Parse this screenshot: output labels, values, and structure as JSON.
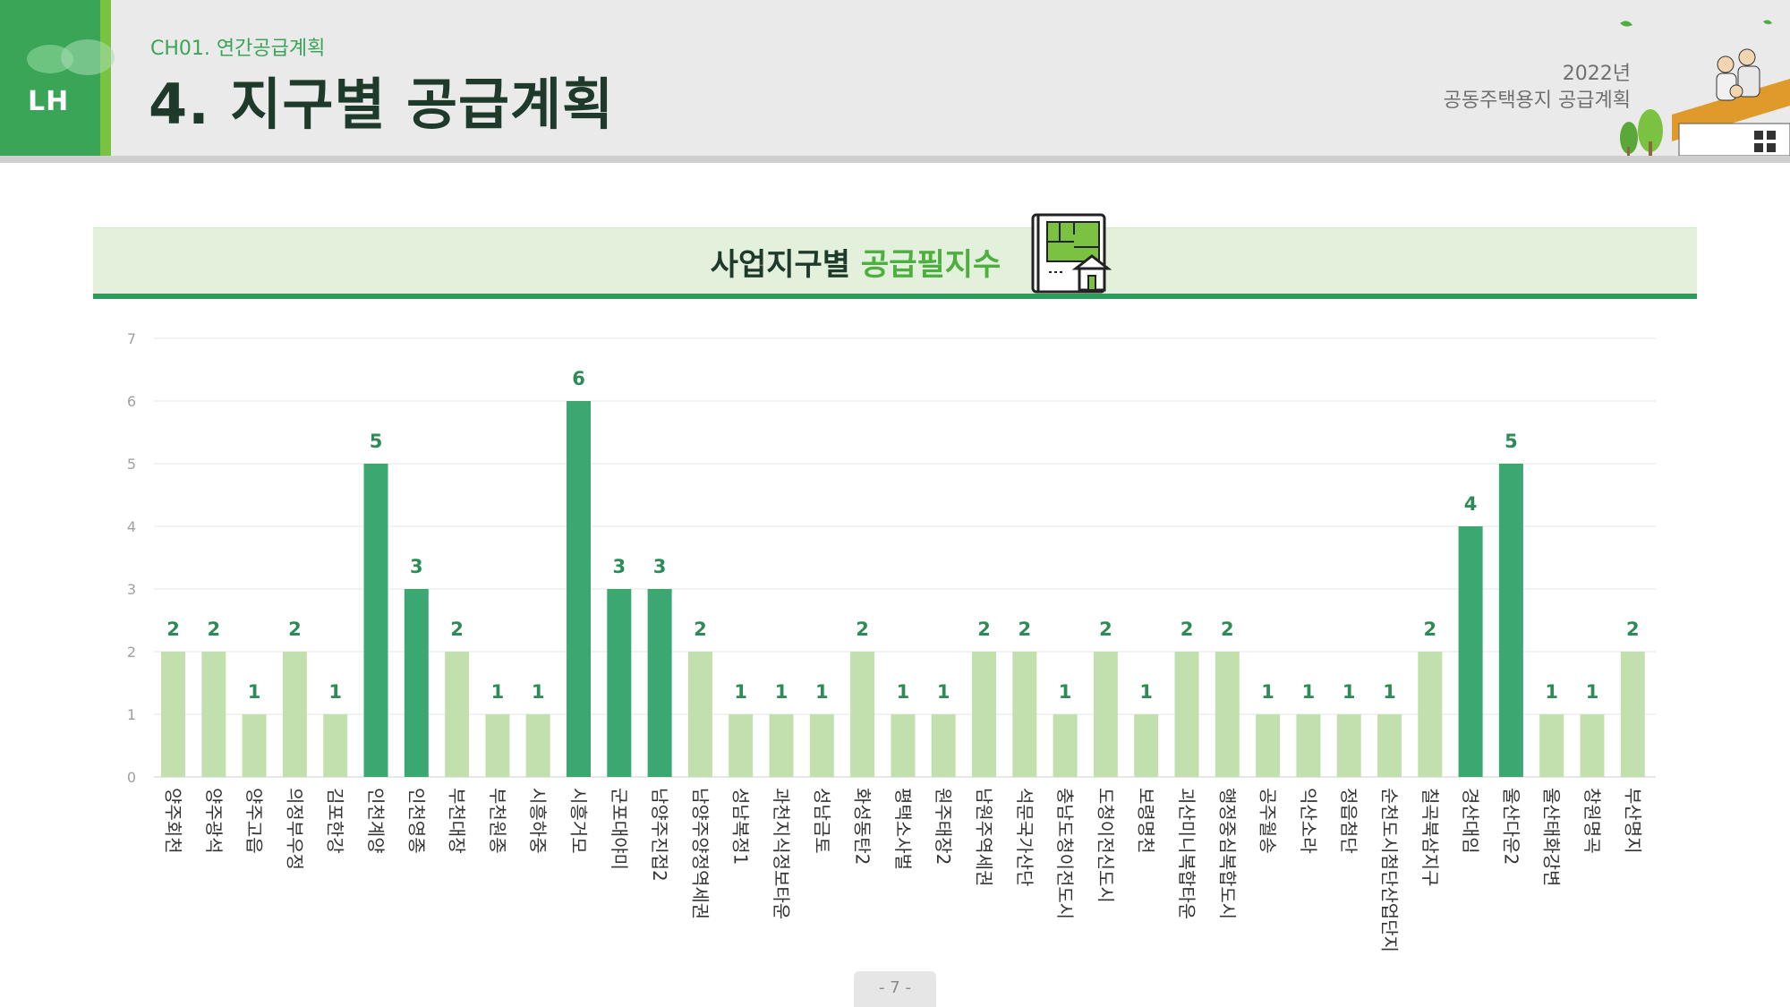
{
  "header": {
    "logo_text": "LH",
    "chapter": "CH01. 연간공급계획",
    "title": "4. 지구별 공급계획",
    "year": "2022년",
    "plan_name": "공동주택용지 공급계획"
  },
  "section": {
    "title_part1": "사업지구별",
    "title_part2": "공급필지수"
  },
  "footer": {
    "page": "- 7 -"
  },
  "colors": {
    "bar_dark": "#3aa870",
    "bar_light": "#c2e0ad",
    "label": "#2e8b57"
  },
  "chart_data": {
    "type": "bar",
    "title": "",
    "xlabel": "",
    "ylabel": "",
    "ylim": [
      0,
      7
    ],
    "yticks": [
      0,
      1,
      2,
      3,
      4,
      5,
      6,
      7
    ],
    "grid": true,
    "categories": [
      "양주회천",
      "양주광석",
      "양주고읍",
      "의정부우정",
      "김포한강",
      "인천계양",
      "인천영종",
      "부천대장",
      "부천원종",
      "시흥하중",
      "시흥거모",
      "군포대야미",
      "남양주진접2",
      "남양주양정역세권",
      "성남복정1",
      "과천지식정보타운",
      "성남금토",
      "화성동탄2",
      "평택소사벌",
      "원주태장2",
      "남원주역세권",
      "석문국가산단",
      "충남도청이전도시",
      "도청이전신도시",
      "보령명천",
      "괴산미니복합타운",
      "행정중심복합도시",
      "공주월송",
      "익산소라",
      "정읍첨단",
      "순천도시첨단산업단지",
      "칠곡북삼지구",
      "경산대임",
      "울산다운2",
      "울산태화강변",
      "창원명곡",
      "부산명지"
    ],
    "values": [
      2,
      2,
      1,
      2,
      1,
      5,
      3,
      2,
      1,
      1,
      6,
      3,
      3,
      2,
      1,
      1,
      1,
      2,
      1,
      1,
      2,
      2,
      1,
      2,
      1,
      2,
      2,
      1,
      1,
      1,
      1,
      2,
      4,
      5,
      1,
      1,
      2
    ],
    "highlight_threshold": 3
  }
}
